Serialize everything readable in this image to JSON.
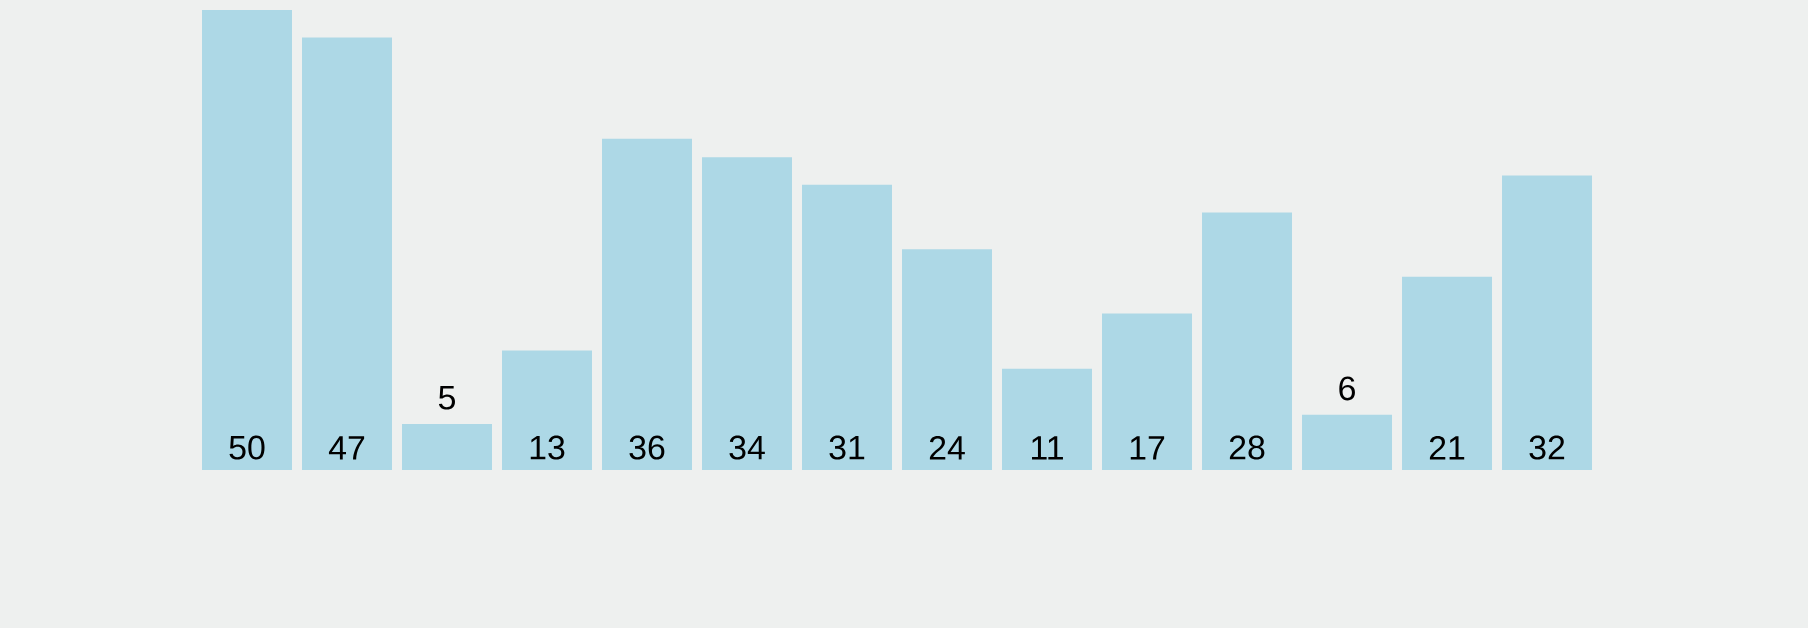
{
  "chart_data": {
    "type": "bar",
    "categories": [
      null,
      null,
      null,
      null,
      null,
      null,
      null,
      null,
      null,
      null,
      null,
      null,
      null,
      null
    ],
    "values": [
      50,
      47,
      5,
      13,
      36,
      34,
      31,
      24,
      11,
      17,
      28,
      6,
      21,
      32
    ],
    "color": "#add8e6",
    "data_labels": true
  }
}
